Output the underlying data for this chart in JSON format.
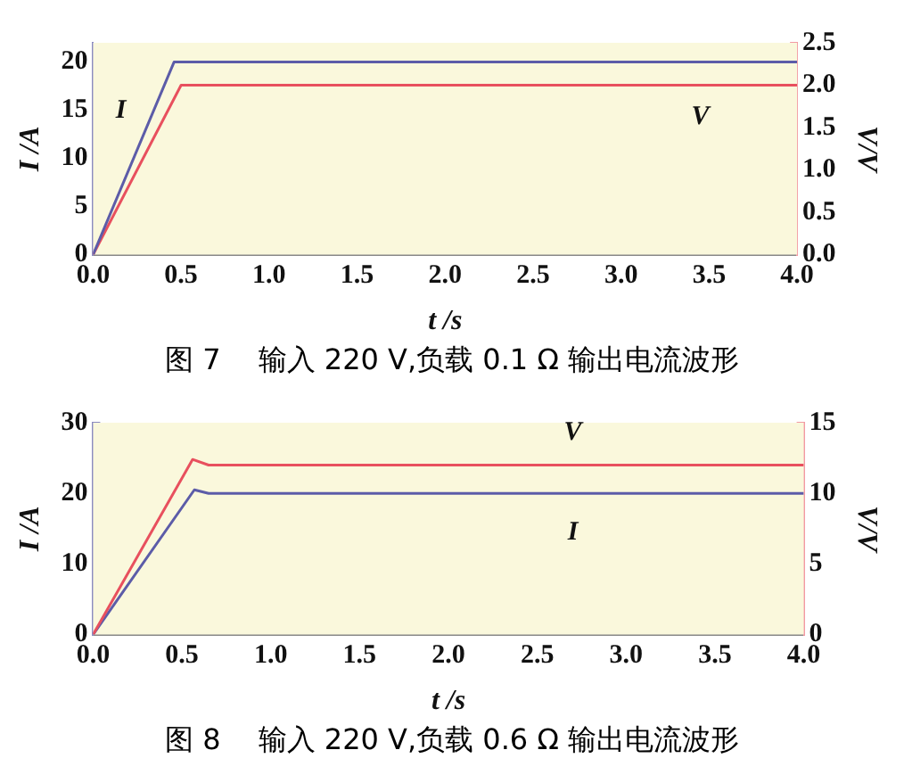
{
  "chart_data": [
    {
      "type": "line",
      "xlabel": "t /s",
      "ylabel": "I /A",
      "y2label": "V/V",
      "xlim": [
        0,
        4
      ],
      "xticks": [
        {
          "value": 0,
          "label": "0.0"
        },
        {
          "value": 0.5,
          "label": "0.5"
        },
        {
          "value": 1,
          "label": "1.0"
        },
        {
          "value": 1.5,
          "label": "1.5"
        },
        {
          "value": 2,
          "label": "2.0"
        },
        {
          "value": 2.5,
          "label": "2.5"
        },
        {
          "value": 3,
          "label": "3.0"
        },
        {
          "value": 3.5,
          "label": "3.5"
        },
        {
          "value": 4,
          "label": "4.0"
        }
      ],
      "ylim": [
        0,
        22
      ],
      "yticks": [
        0,
        5,
        10,
        15,
        20
      ],
      "y2lim": [
        0,
        2.5
      ],
      "y2ticks": [
        {
          "value": 0,
          "label": "0.0"
        },
        {
          "value": 0.5,
          "label": "0.5"
        },
        {
          "value": 1,
          "label": "1.0"
        },
        {
          "value": 1.5,
          "label": "1.5"
        },
        {
          "value": 2,
          "label": "2.0"
        },
        {
          "value": 2.5,
          "label": "2.5"
        }
      ],
      "grid": false,
      "legend": false,
      "marker": "none",
      "line_style": "solid",
      "annotations": [
        "图 7　 输入 220 V,负载 0.1 Ω 输出电流波形"
      ],
      "series": [
        {
          "name": "I",
          "color": "#5c5ca8",
          "x": [
            0,
            0.46,
            4
          ],
          "values": [
            0,
            20,
            20
          ]
        },
        {
          "name": "V",
          "color": "#e8505e",
          "axis": "y2",
          "x": [
            0,
            0.5,
            4
          ],
          "values": [
            0,
            2.0,
            2.0
          ]
        }
      ]
    },
    {
      "type": "line",
      "xlabel": "t /s",
      "ylabel": "I /A",
      "y2label": "V/V",
      "xlim": [
        0,
        4
      ],
      "xticks": [
        {
          "value": 0,
          "label": "0.0"
        },
        {
          "value": 0.5,
          "label": "0.5"
        },
        {
          "value": 1,
          "label": "1.0"
        },
        {
          "value": 1.5,
          "label": "1.5"
        },
        {
          "value": 2,
          "label": "2.0"
        },
        {
          "value": 2.5,
          "label": "2.5"
        },
        {
          "value": 3,
          "label": "3.0"
        },
        {
          "value": 3.5,
          "label": "3.5"
        },
        {
          "value": 4,
          "label": "4.0"
        }
      ],
      "ylim": [
        0,
        30
      ],
      "yticks": [
        0,
        10,
        20,
        30
      ],
      "y2lim": [
        0,
        15
      ],
      "y2ticks": [
        0,
        5,
        10,
        15
      ],
      "grid": false,
      "legend": false,
      "marker": "none",
      "line_style": "solid",
      "annotations": [
        "图 8　 输入 220 V,负载 0.6 Ω 输出电流波形"
      ],
      "series": [
        {
          "name": "V",
          "color": "#e8505e",
          "axis": "y2",
          "x": [
            0,
            0.56,
            0.65,
            4
          ],
          "values": [
            0,
            12.4,
            12,
            12
          ]
        },
        {
          "name": "I",
          "color": "#5c5ca8",
          "x": [
            0,
            0.57,
            0.65,
            4
          ],
          "values": [
            0,
            20.5,
            20,
            20
          ]
        }
      ]
    }
  ]
}
